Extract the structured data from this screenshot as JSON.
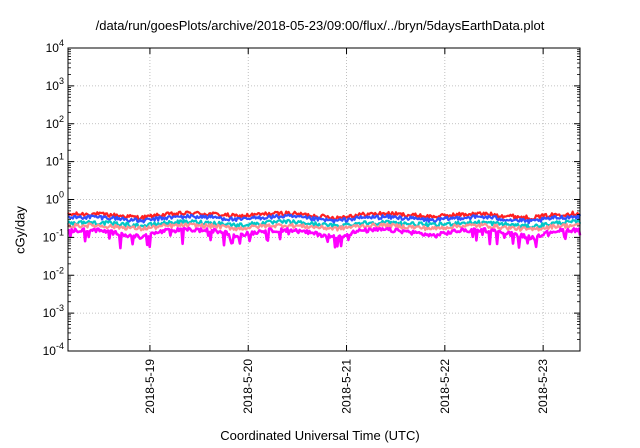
{
  "chart_data": {
    "type": "line",
    "title": "/data/run/goesPlots/archive/2018-05-23/09:00/flux/../bryn/5daysEarthData.plot",
    "xlabel": "Coordinated Universal Time (UTC)",
    "ylabel": "cGy/day",
    "yscale": "log",
    "ylim": [
      0.0001,
      10000
    ],
    "xlim": [
      "2018-05-18 04:00",
      "2018-05-23 09:00"
    ],
    "y_ticks": [
      {
        "base": "10",
        "exp": "-4"
      },
      {
        "base": "10",
        "exp": "-3"
      },
      {
        "base": "10",
        "exp": "-2"
      },
      {
        "base": "10",
        "exp": "-1"
      },
      {
        "base": "10",
        "exp": "0"
      },
      {
        "base": "10",
        "exp": "1"
      },
      {
        "base": "10",
        "exp": "2"
      },
      {
        "base": "10",
        "exp": "3"
      },
      {
        "base": "10",
        "exp": "4"
      }
    ],
    "x_ticks": [
      "2018-5-19",
      "2018-5-20",
      "2018-5-21",
      "2018-5-22",
      "2018-5-23"
    ],
    "grid": true,
    "series": [
      {
        "color": "#ff2020",
        "values": [
          0.4,
          0.42,
          0.38,
          0.33,
          0.4,
          0.44,
          0.41,
          0.36,
          0.41,
          0.44,
          0.38,
          0.33,
          0.4,
          0.43,
          0.39,
          0.35,
          0.4,
          0.42,
          0.37,
          0.33,
          0.4,
          0.44
        ]
      },
      {
        "color": "#3050ff",
        "values": [
          0.33,
          0.35,
          0.32,
          0.27,
          0.33,
          0.36,
          0.34,
          0.29,
          0.34,
          0.36,
          0.31,
          0.27,
          0.33,
          0.35,
          0.32,
          0.28,
          0.33,
          0.35,
          0.3,
          0.26,
          0.33,
          0.36
        ]
      },
      {
        "color": "#00c8c8",
        "values": [
          0.24,
          0.25,
          0.23,
          0.2,
          0.24,
          0.26,
          0.24,
          0.21,
          0.24,
          0.26,
          0.23,
          0.2,
          0.24,
          0.25,
          0.23,
          0.21,
          0.24,
          0.25,
          0.22,
          0.19,
          0.24,
          0.26
        ]
      },
      {
        "color": "#ff9090",
        "values": [
          0.2,
          0.21,
          0.19,
          0.17,
          0.2,
          0.21,
          0.2,
          0.17,
          0.2,
          0.21,
          0.19,
          0.17,
          0.2,
          0.21,
          0.19,
          0.17,
          0.2,
          0.21,
          0.18,
          0.16,
          0.2,
          0.21
        ]
      },
      {
        "color": "#ff00ff",
        "values": [
          0.15,
          0.16,
          0.13,
          0.1,
          0.15,
          0.16,
          0.15,
          0.11,
          0.15,
          0.16,
          0.13,
          0.1,
          0.15,
          0.16,
          0.14,
          0.11,
          0.15,
          0.16,
          0.13,
          0.1,
          0.15,
          0.16
        ]
      }
    ]
  }
}
